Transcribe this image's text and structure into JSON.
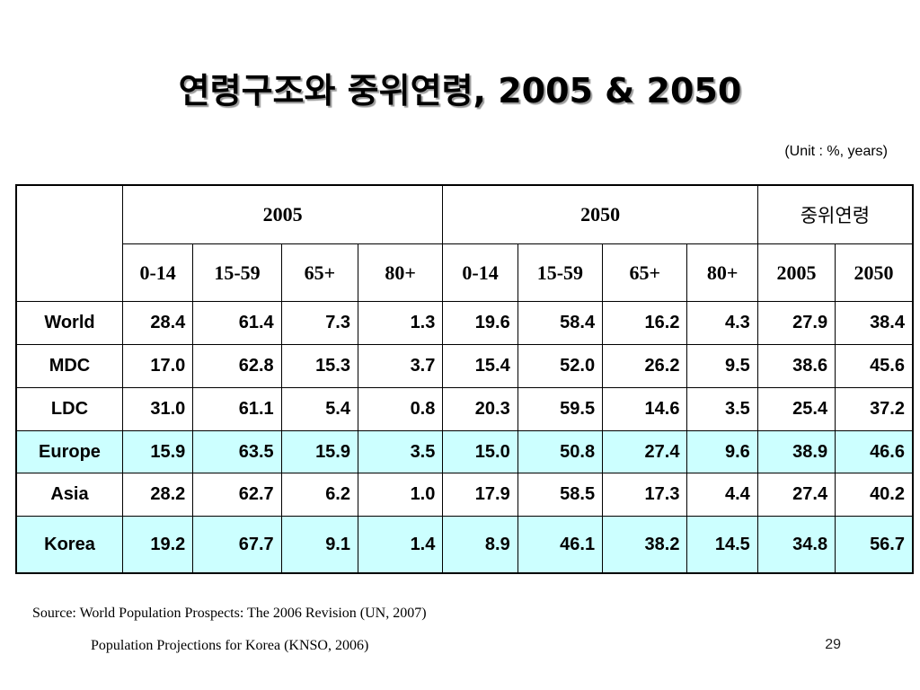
{
  "slide": {
    "title": "연령구조와 중위연령, 2005 & 2050",
    "unit": "(Unit : %, years)",
    "source_line1": "Source: World Population Prospects: The 2006 Revision (UN, 2007)",
    "source_line2": "Population Projections for Korea (KNSO, 2006)",
    "page_number": "29",
    "highlight_color": "#ccffff"
  },
  "table": {
    "group_headers": [
      "2005",
      "2050",
      "중위연령"
    ],
    "sub_headers": [
      "0-14",
      "15-59",
      "65+",
      "80+",
      "0-14",
      "15-59",
      "65+",
      "80+",
      "2005",
      "2050"
    ],
    "rows": [
      {
        "label": "World",
        "highlight": false,
        "values": [
          "28.4",
          "61.4",
          "7.3",
          "1.3",
          "19.6",
          "58.4",
          "16.2",
          "4.3",
          "27.9",
          "38.4"
        ]
      },
      {
        "label": "MDC",
        "highlight": false,
        "values": [
          "17.0",
          "62.8",
          "15.3",
          "3.7",
          "15.4",
          "52.0",
          "26.2",
          "9.5",
          "38.6",
          "45.6"
        ]
      },
      {
        "label": "LDC",
        "highlight": false,
        "values": [
          "31.0",
          "61.1",
          "5.4",
          "0.8",
          "20.3",
          "59.5",
          "14.6",
          "3.5",
          "25.4",
          "37.2"
        ]
      },
      {
        "label": "Europe",
        "highlight": true,
        "values": [
          "15.9",
          "63.5",
          "15.9",
          "3.5",
          "15.0",
          "50.8",
          "27.4",
          "9.6",
          "38.9",
          "46.6"
        ]
      },
      {
        "label": "Asia",
        "highlight": false,
        "values": [
          "28.2",
          "62.7",
          "6.2",
          "1.0",
          "17.9",
          "58.5",
          "17.3",
          "4.4",
          "27.4",
          "40.2"
        ]
      },
      {
        "label": "Korea",
        "highlight": true,
        "values": [
          "19.2",
          "67.7",
          "9.1",
          "1.4",
          "8.9",
          "46.1",
          "38.2",
          "14.5",
          "34.8",
          "56.7"
        ]
      }
    ]
  }
}
